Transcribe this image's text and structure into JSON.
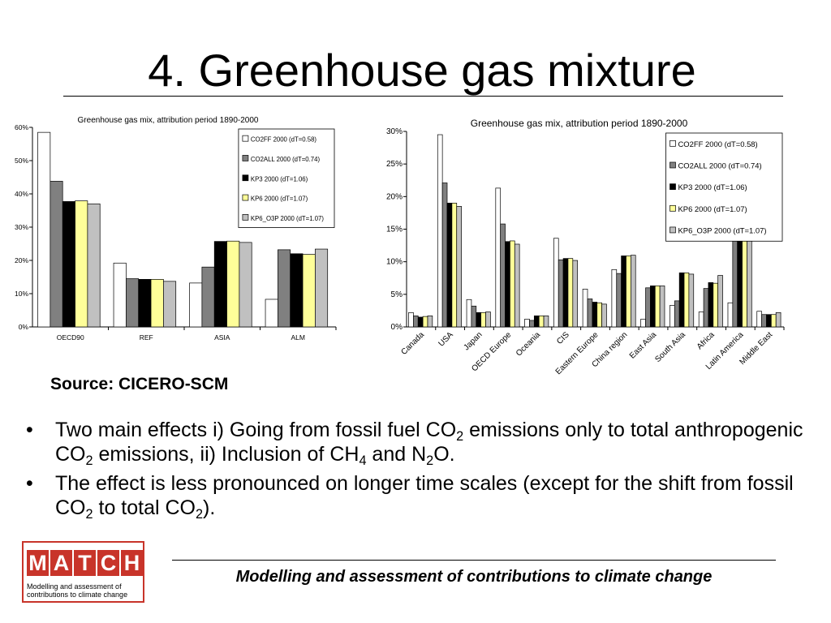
{
  "slide": {
    "title": "4. Greenhouse gas mixture",
    "source": "Source: CICERO-SCM",
    "bullets": [
      [
        {
          "t": "Two main effects i) Going from fossil fuel CO"
        },
        {
          "t": "2",
          "sub": true
        },
        {
          "t": " emissions only to total anthropogenic CO"
        },
        {
          "t": "2",
          "sub": true
        },
        {
          "t": " emissions, ii) Inclusion of CH"
        },
        {
          "t": "4",
          "sub": true
        },
        {
          "t": " and N"
        },
        {
          "t": "2",
          "sub": true
        },
        {
          "t": "O."
        }
      ],
      [
        {
          "t": "The effect is less pronounced on longer time scales (except for the shift from fossil CO"
        },
        {
          "t": "2",
          "sub": true
        },
        {
          "t": " to total CO"
        },
        {
          "t": "2",
          "sub": true
        },
        {
          "t": ")."
        }
      ]
    ],
    "footer": "Modelling and assessment of contributions to climate change",
    "logo": {
      "letters": [
        "M",
        "A",
        "T",
        "C",
        "H"
      ],
      "line1": "Modelling   and   assessment   of",
      "line2": "contributions to climate change",
      "color": "#c8342a"
    }
  },
  "chart_data": [
    {
      "type": "bar",
      "title": "Greenhouse gas mix, attribution period 1890-2000",
      "xlabel": "",
      "ylabel": "",
      "ylim": [
        0,
        60
      ],
      "yticks": [
        "0%",
        "10%",
        "20%",
        "30%",
        "40%",
        "50%",
        "60%"
      ],
      "ytick_values": [
        0,
        10,
        20,
        30,
        40,
        50,
        60
      ],
      "categories": [
        "OECD90",
        "REF",
        "ASIA",
        "ALM"
      ],
      "grid": false,
      "legend_position": "top-right",
      "series": [
        {
          "name": "CO2FF 2000 (dT=0.58)",
          "color": "#ffffff",
          "values": [
            58.5,
            19.2,
            13.2,
            8.3
          ]
        },
        {
          "name": "CO2ALL 2000 (dT=0.74)",
          "color": "#808080",
          "values": [
            43.8,
            14.5,
            18.0,
            23.2
          ]
        },
        {
          "name": "KP3 2000 (dT=1.06)",
          "color": "#000000",
          "values": [
            37.7,
            14.3,
            25.7,
            22.0
          ]
        },
        {
          "name": "KP6 2000 (dT=1.07)",
          "color": "#ffff99",
          "values": [
            37.9,
            14.3,
            25.8,
            21.8
          ]
        },
        {
          "name": "KP6_O3P 2000 (dT=1.07)",
          "color": "#c0c0c0",
          "values": [
            37.0,
            13.7,
            25.4,
            23.4
          ]
        }
      ]
    },
    {
      "type": "bar",
      "title": "Greenhouse gas mix, attribution period 1890-2000",
      "xlabel": "",
      "ylabel": "",
      "ylim": [
        0,
        30
      ],
      "yticks": [
        "0%",
        "5%",
        "10%",
        "15%",
        "20%",
        "25%",
        "30%"
      ],
      "ytick_values": [
        0,
        5,
        10,
        15,
        20,
        25,
        30
      ],
      "categories": [
        "Canada",
        "USA",
        "Japan",
        "OECD Europe",
        "Oceania",
        "CIS",
        "Eastern Europe",
        "China region",
        "East Asia",
        "South Asia",
        "Africa",
        "Latin America",
        "Middle East"
      ],
      "grid": false,
      "legend_position": "top-right",
      "series": [
        {
          "name": "CO2FF 2000 (dT=0.58)",
          "color": "#ffffff",
          "values": [
            2.2,
            29.5,
            4.2,
            21.3,
            1.2,
            13.6,
            5.8,
            8.8,
            1.2,
            3.3,
            2.3,
            3.7,
            2.4
          ]
        },
        {
          "name": "CO2ALL 2000 (dT=0.74)",
          "color": "#808080",
          "values": [
            1.7,
            22.1,
            3.2,
            15.8,
            1.0,
            10.3,
            4.3,
            8.2,
            6.0,
            4.0,
            5.9,
            14.5,
            1.9
          ]
        },
        {
          "name": "KP3 2000 (dT=1.06)",
          "color": "#000000",
          "values": [
            1.5,
            19.0,
            2.2,
            13.1,
            1.7,
            10.5,
            3.8,
            10.9,
            6.3,
            8.3,
            6.8,
            15.0,
            1.9
          ]
        },
        {
          "name": "KP6 2000 (dT=1.07)",
          "color": "#ffff99",
          "values": [
            1.6,
            19.0,
            2.2,
            13.2,
            1.7,
            10.5,
            3.7,
            10.9,
            6.3,
            8.3,
            6.7,
            15.0,
            1.9
          ]
        },
        {
          "name": "KP6_O3P 2000 (dT=1.07)",
          "color": "#c0c0c0",
          "values": [
            1.7,
            18.5,
            2.3,
            12.7,
            1.7,
            10.2,
            3.5,
            11.0,
            6.3,
            8.1,
            7.9,
            15.2,
            2.2
          ]
        }
      ]
    }
  ]
}
